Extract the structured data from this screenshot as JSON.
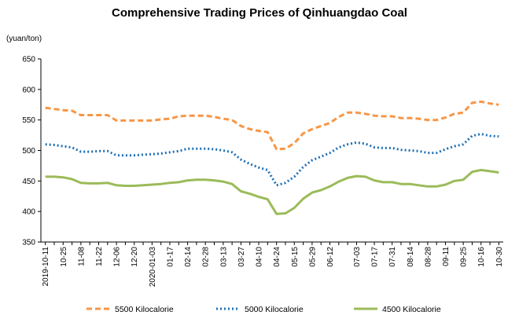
{
  "chart_data": {
    "type": "line",
    "title": "Comprehensive Trading Prices of Qinhuangdao Coal",
    "ylabel": "(yuan/ton)",
    "xlabel": "",
    "ylim": [
      350,
      650
    ],
    "yticks": [
      350,
      400,
      450,
      500,
      550,
      600,
      650
    ],
    "grid": false,
    "legend_position": "bottom",
    "x": [
      "2019-10-11",
      "2019-10-18",
      "10-25",
      "2019-11-01",
      "11-08",
      "2019-11-15",
      "11-22",
      "2019-11-29",
      "12-06",
      "2019-12-13",
      "12-20",
      "2019-12-27",
      "2020-01-03",
      "2020-01-10",
      "01-17",
      "2020-01-24",
      "02-14",
      "2020-02-21",
      "02-28",
      "2020-03-06",
      "03-13",
      "2020-03-20",
      "03-27",
      "2020-04-03",
      "04-10",
      "2020-04-17",
      "04-24",
      "2020-05-08",
      "05-15",
      "2020-05-22",
      "05-29",
      "2020-06-05",
      "06-12",
      "2020-06-19",
      "06-26",
      "07-03",
      "2020-07-10",
      "07-17",
      "2020-07-24",
      "07-31",
      "2020-08-07",
      "08-14",
      "2020-08-21",
      "08-28",
      "2020-09-04",
      "09-11",
      "2020-09-18",
      "09-25",
      "2020-10-09",
      "10-16",
      "2020-10-23",
      "10-30"
    ],
    "x_tick_labels": [
      "2019-10-11",
      "10-25",
      "11-08",
      "11-22",
      "12-06",
      "12-20",
      "2020-01-03",
      "01-17",
      "02-14",
      "02-28",
      "03-13",
      "03-27",
      "04-10",
      "04-24",
      "05-15",
      "05-29",
      "06-12",
      "07-03",
      "07-17",
      "07-31",
      "08-14",
      "08-28",
      "09-11",
      "09-25",
      "10-16",
      "10-30"
    ],
    "series": [
      {
        "name": "5500 Kilocalorie",
        "color": "#F79646",
        "style": "dashed",
        "values": [
          570,
          568,
          566,
          565,
          558,
          558,
          558,
          558,
          549,
          549,
          549,
          549,
          549,
          551,
          552,
          556,
          557,
          557,
          557,
          555,
          552,
          550,
          540,
          535,
          532,
          530,
          502,
          503,
          512,
          528,
          535,
          540,
          545,
          555,
          562,
          562,
          560,
          557,
          556,
          556,
          553,
          553,
          552,
          550,
          550,
          554,
          560,
          562,
          578,
          580,
          577,
          575
        ]
      },
      {
        "name": "5000 Kilocalorie",
        "color": "#1F6FB5",
        "style": "dotted",
        "values": [
          510,
          509,
          507,
          505,
          498,
          498,
          499,
          499,
          492,
          492,
          492,
          493,
          494,
          495,
          497,
          499,
          503,
          503,
          503,
          502,
          500,
          497,
          485,
          478,
          472,
          468,
          443,
          447,
          457,
          473,
          484,
          490,
          496,
          505,
          510,
          513,
          511,
          505,
          504,
          504,
          501,
          500,
          499,
          496,
          496,
          502,
          507,
          510,
          524,
          527,
          524,
          523
        ]
      },
      {
        "name": "4500 Kilocalorie",
        "color": "#9BBB59",
        "style": "solid",
        "values": [
          457,
          457,
          456,
          453,
          447,
          446,
          446,
          447,
          443,
          442,
          442,
          443,
          444,
          445,
          447,
          448,
          451,
          452,
          452,
          451,
          449,
          445,
          433,
          429,
          424,
          420,
          396,
          397,
          406,
          421,
          431,
          435,
          441,
          449,
          455,
          458,
          457,
          451,
          448,
          448,
          445,
          445,
          443,
          441,
          441,
          444,
          450,
          452,
          465,
          468,
          466,
          464
        ]
      }
    ]
  }
}
